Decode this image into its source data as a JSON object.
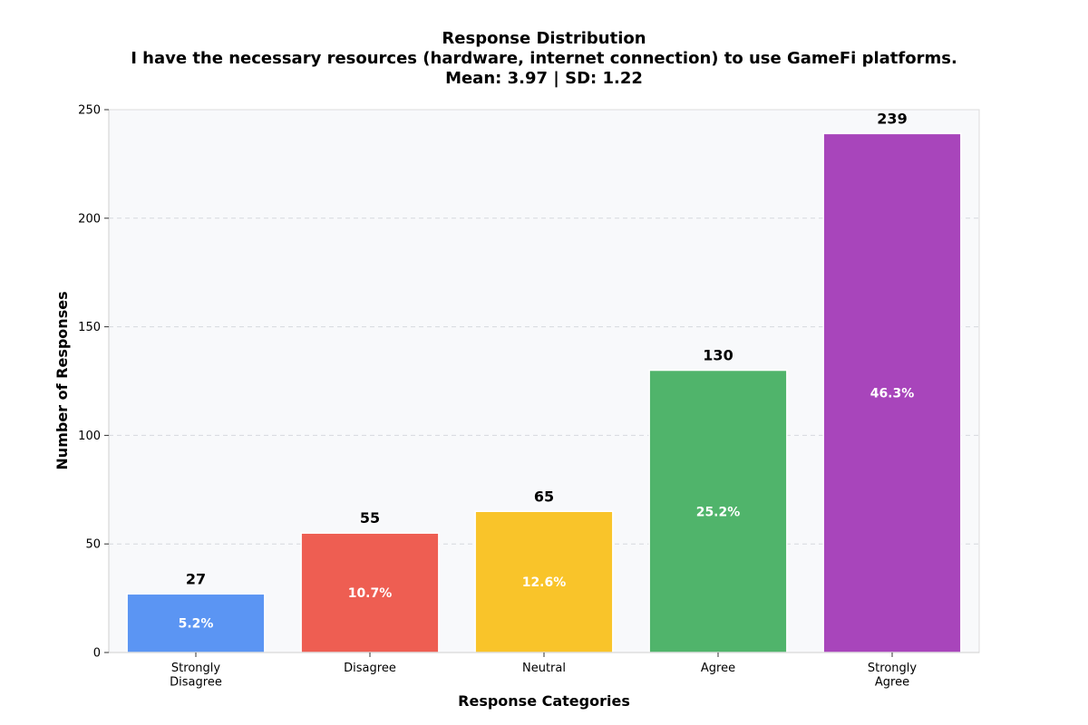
{
  "chart_data": {
    "type": "bar",
    "title_lines": [
      "Response Distribution",
      "I have the necessary resources (hardware, internet connection) to use GameFi platforms.",
      "Mean: 3.97 | SD: 1.22"
    ],
    "xlabel": "Response Categories",
    "ylabel": "Number of Responses",
    "categories": [
      [
        "Strongly",
        "Disagree"
      ],
      [
        "Disagree"
      ],
      [
        "Neutral"
      ],
      [
        "Agree"
      ],
      [
        "Strongly",
        "Agree"
      ]
    ],
    "values": [
      27,
      55,
      65,
      130,
      239
    ],
    "value_labels": [
      "27",
      "55",
      "65",
      "130",
      "239"
    ],
    "percent_labels": [
      "5.2%",
      "10.7%",
      "12.6%",
      "25.2%",
      "46.3%"
    ],
    "colors": [
      "#5b95f3",
      "#ee5e52",
      "#f9c42a",
      "#50b46b",
      "#a845bb"
    ],
    "ylim": [
      0,
      250
    ],
    "yticks": [
      0,
      50,
      100,
      150,
      200,
      250
    ],
    "grid": true,
    "legend": "none"
  }
}
